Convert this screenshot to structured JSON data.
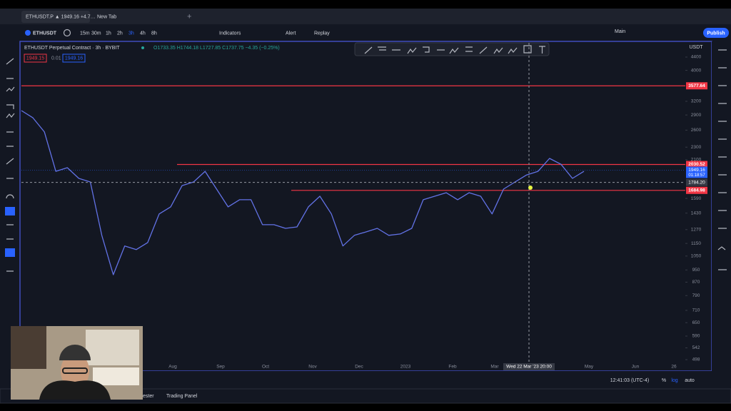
{
  "browser": {
    "tabs": [
      "ETHUSDT.P ▲ 1949.16 +4.7…",
      "New Tab"
    ]
  },
  "toolbar": {
    "symbol": "ETHUSDT",
    "intervals": [
      "15m",
      "30m",
      "1h",
      "2h",
      "3h",
      "4h",
      "8h"
    ],
    "active_interval": "3h",
    "indicators": "Indicators",
    "alert": "Alert",
    "replay": "Replay",
    "layout": "Main",
    "publish": "Publish"
  },
  "legend": {
    "title": "ETHUSDT Perpetual Contract · 3h · BYBIT",
    "ohlc": "O1733.35 H1744.18 L1727.85 C1737.75 −4.35 (−0.25%)",
    "bid": "1949.15",
    "spread": "0.01",
    "ask": "1949.16"
  },
  "chart": {
    "type": "line",
    "currency": "USDT",
    "log_scale": true,
    "line_color": "#6272e6",
    "ylim": [
      498,
      4400
    ],
    "yticks": [
      4400,
      4000,
      3200,
      2900,
      2600,
      2300,
      2100,
      1590,
      1430,
      1270,
      1150,
      1050,
      950,
      870,
      790,
      710,
      650,
      590,
      542,
      498
    ],
    "price_series": [
      2993,
      2842,
      2566,
      1933,
      1984,
      1837,
      1790,
      1219,
      918,
      1129,
      1100,
      1157,
      1422,
      1496,
      1744,
      1790,
      1933,
      1701,
      1496,
      1575,
      1575,
      1316,
      1316,
      1282,
      1295,
      1496,
      1615,
      1422,
      1129,
      1219,
      1249,
      1282,
      1219,
      1231,
      1282,
      1575,
      1615,
      1657,
      1575,
      1657,
      1615,
      1422,
      1701,
      1790,
      1883,
      1933,
      2121,
      2034,
      1837,
      1933
    ],
    "horizontal_lines": [
      {
        "value": 3577.64,
        "color": "#f23645"
      },
      {
        "value": 2030.52,
        "color": "#f23645"
      },
      {
        "value": 1684.98,
        "color": "#f23645"
      }
    ],
    "x_labels": [
      "Aug",
      "Sep",
      "Oct",
      "Nov",
      "Dec",
      "2023",
      "Feb",
      "Mar",
      "May",
      "Jun",
      "26"
    ],
    "crosshair": {
      "value": 1784.2,
      "label": "1784.20",
      "time": "Wed 22 Mar '23  20:00"
    },
    "last_price": {
      "value": 1949.16,
      "countdown": "01:18:57"
    }
  },
  "bottom": {
    "clock": "12:41:03 (UTC-4)",
    "percent": "%",
    "log": "log",
    "auto": "auto",
    "tabs": [
      "ester",
      "Trading Panel"
    ]
  }
}
